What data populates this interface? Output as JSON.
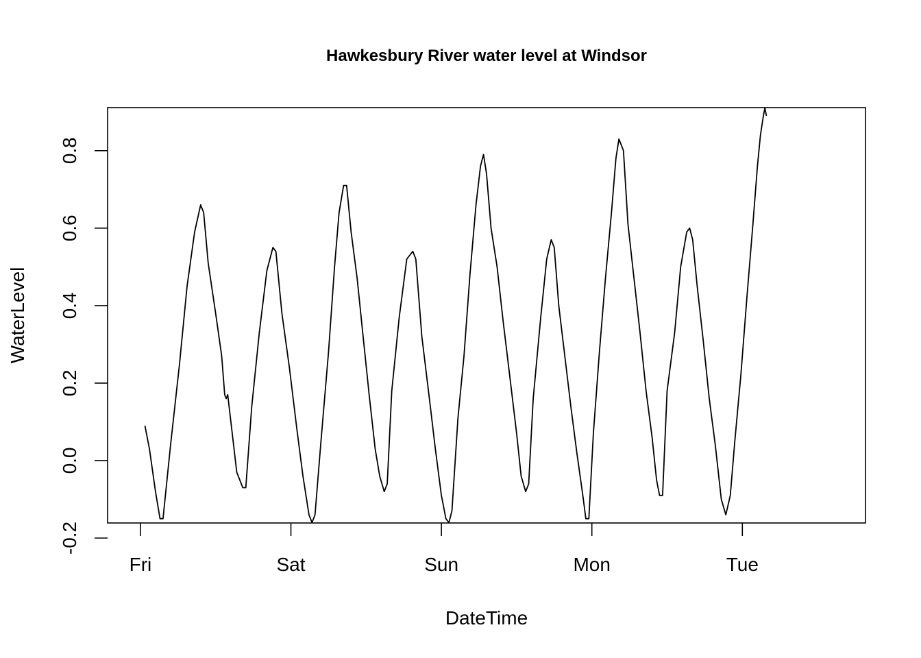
{
  "chart_data": {
    "type": "line",
    "title": "Hawkesbury River water level at Windsor",
    "xlabel": "DateTime",
    "ylabel": "WaterLevel",
    "x_unit": "days since Fri 00:00",
    "xlim": [
      -0.15,
      4.75
    ],
    "ylim": [
      -0.2,
      0.95
    ],
    "x_ticks": [
      {
        "value": 0,
        "label": "Fri"
      },
      {
        "value": 1,
        "label": "Sat"
      },
      {
        "value": 2,
        "label": "Sun"
      },
      {
        "value": 3,
        "label": "Mon"
      },
      {
        "value": 4,
        "label": "Tue"
      }
    ],
    "y_ticks": [
      {
        "value": -0.2,
        "label": "-0.2"
      },
      {
        "value": 0.0,
        "label": "0.0"
      },
      {
        "value": 0.2,
        "label": "0.2"
      },
      {
        "value": 0.4,
        "label": "0.4"
      },
      {
        "value": 0.6,
        "label": "0.6"
      },
      {
        "value": 0.8,
        "label": "0.8"
      }
    ],
    "grid": false,
    "series": [
      {
        "name": "WaterLevel",
        "color": "#000000",
        "points": [
          [
            0.03,
            0.09
          ],
          [
            0.06,
            0.03
          ],
          [
            0.1,
            -0.08
          ],
          [
            0.13,
            -0.15
          ],
          [
            0.15,
            -0.15
          ],
          [
            0.2,
            0.04
          ],
          [
            0.26,
            0.25
          ],
          [
            0.31,
            0.45
          ],
          [
            0.36,
            0.59
          ],
          [
            0.4,
            0.66
          ],
          [
            0.42,
            0.64
          ],
          [
            0.45,
            0.51
          ],
          [
            0.5,
            0.38
          ],
          [
            0.54,
            0.27
          ],
          [
            0.56,
            0.17
          ],
          [
            0.57,
            0.16
          ],
          [
            0.58,
            0.17
          ],
          [
            0.61,
            0.07
          ],
          [
            0.64,
            -0.03
          ],
          [
            0.68,
            -0.07
          ],
          [
            0.7,
            -0.07
          ],
          [
            0.74,
            0.14
          ],
          [
            0.79,
            0.33
          ],
          [
            0.84,
            0.49
          ],
          [
            0.88,
            0.55
          ],
          [
            0.9,
            0.54
          ],
          [
            0.94,
            0.38
          ],
          [
            0.99,
            0.24
          ],
          [
            1.04,
            0.08
          ],
          [
            1.08,
            -0.04
          ],
          [
            1.12,
            -0.14
          ],
          [
            1.14,
            -0.16
          ],
          [
            1.16,
            -0.14
          ],
          [
            1.2,
            0.05
          ],
          [
            1.25,
            0.28
          ],
          [
            1.29,
            0.5
          ],
          [
            1.32,
            0.64
          ],
          [
            1.35,
            0.71
          ],
          [
            1.37,
            0.71
          ],
          [
            1.4,
            0.59
          ],
          [
            1.44,
            0.47
          ],
          [
            1.48,
            0.32
          ],
          [
            1.52,
            0.17
          ],
          [
            1.56,
            0.03
          ],
          [
            1.59,
            -0.04
          ],
          [
            1.62,
            -0.08
          ],
          [
            1.64,
            -0.06
          ],
          [
            1.67,
            0.18
          ],
          [
            1.72,
            0.37
          ],
          [
            1.77,
            0.52
          ],
          [
            1.81,
            0.54
          ],
          [
            1.83,
            0.52
          ],
          [
            1.87,
            0.32
          ],
          [
            1.92,
            0.16
          ],
          [
            1.96,
            0.03
          ],
          [
            2.0,
            -0.09
          ],
          [
            2.03,
            -0.15
          ],
          [
            2.05,
            -0.16
          ],
          [
            2.07,
            -0.13
          ],
          [
            2.11,
            0.11
          ],
          [
            2.15,
            0.27
          ],
          [
            2.19,
            0.48
          ],
          [
            2.23,
            0.66
          ],
          [
            2.26,
            0.76
          ],
          [
            2.28,
            0.79
          ],
          [
            2.3,
            0.74
          ],
          [
            2.33,
            0.6
          ],
          [
            2.37,
            0.5
          ],
          [
            2.41,
            0.36
          ],
          [
            2.46,
            0.2
          ],
          [
            2.5,
            0.07
          ],
          [
            2.53,
            -0.04
          ],
          [
            2.56,
            -0.08
          ],
          [
            2.58,
            -0.06
          ],
          [
            2.61,
            0.16
          ],
          [
            2.66,
            0.37
          ],
          [
            2.7,
            0.52
          ],
          [
            2.73,
            0.57
          ],
          [
            2.75,
            0.55
          ],
          [
            2.78,
            0.4
          ],
          [
            2.82,
            0.27
          ],
          [
            2.86,
            0.14
          ],
          [
            2.9,
            0.02
          ],
          [
            2.94,
            -0.09
          ],
          [
            2.96,
            -0.15
          ],
          [
            2.98,
            -0.15
          ],
          [
            3.01,
            0.07
          ],
          [
            3.05,
            0.28
          ],
          [
            3.09,
            0.47
          ],
          [
            3.13,
            0.64
          ],
          [
            3.16,
            0.78
          ],
          [
            3.18,
            0.83
          ],
          [
            3.21,
            0.8
          ],
          [
            3.24,
            0.61
          ],
          [
            3.28,
            0.47
          ],
          [
            3.32,
            0.33
          ],
          [
            3.36,
            0.18
          ],
          [
            3.4,
            0.06
          ],
          [
            3.43,
            -0.05
          ],
          [
            3.45,
            -0.09
          ],
          [
            3.47,
            -0.09
          ],
          [
            3.5,
            0.18
          ],
          [
            3.55,
            0.33
          ],
          [
            3.59,
            0.5
          ],
          [
            3.63,
            0.59
          ],
          [
            3.65,
            0.6
          ],
          [
            3.67,
            0.57
          ],
          [
            3.7,
            0.45
          ],
          [
            3.74,
            0.31
          ],
          [
            3.78,
            0.16
          ],
          [
            3.82,
            0.04
          ],
          [
            3.86,
            -0.1
          ],
          [
            3.89,
            -0.14
          ],
          [
            3.92,
            -0.09
          ],
          [
            3.95,
            0.05
          ],
          [
            3.99,
            0.22
          ],
          [
            4.03,
            0.42
          ],
          [
            4.07,
            0.61
          ],
          [
            4.1,
            0.76
          ],
          [
            4.12,
            0.84
          ],
          [
            4.14,
            0.89
          ],
          [
            4.15,
            0.91
          ],
          [
            4.16,
            0.89
          ]
        ]
      }
    ]
  }
}
